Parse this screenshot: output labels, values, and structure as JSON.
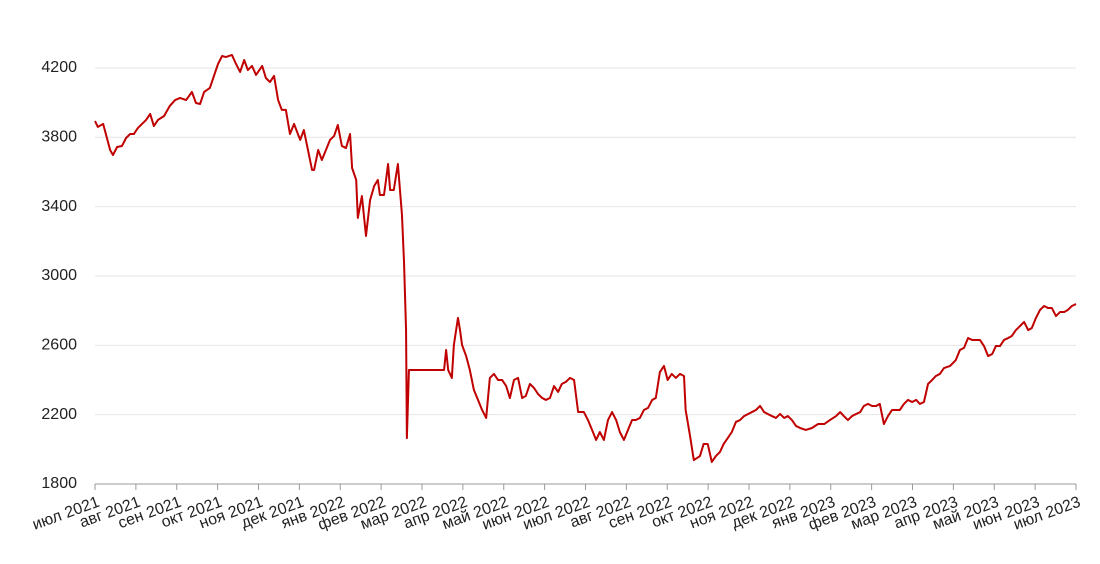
{
  "chart_data": {
    "type": "line",
    "color": "#c00000",
    "grid": true,
    "xlim": [
      0,
      24
    ],
    "ylim": [
      1800,
      4400
    ],
    "yticks": [
      1800,
      2200,
      2600,
      3000,
      3400,
      3800,
      4200
    ],
    "xticks": [
      {
        "value": 0,
        "label": "июл 2021"
      },
      {
        "value": 1,
        "label": "авг 2021"
      },
      {
        "value": 2,
        "label": "сен 2021"
      },
      {
        "value": 3,
        "label": "окт 2021"
      },
      {
        "value": 4,
        "label": "ноя 2021"
      },
      {
        "value": 5,
        "label": "дек 2021"
      },
      {
        "value": 6,
        "label": "янв 2022"
      },
      {
        "value": 7,
        "label": "фев 2022"
      },
      {
        "value": 8,
        "label": "мар 2022"
      },
      {
        "value": 9,
        "label": "апр 2022"
      },
      {
        "value": 10,
        "label": "май 2022"
      },
      {
        "value": 11,
        "label": "июн 2022"
      },
      {
        "value": 12,
        "label": "июл 2022"
      },
      {
        "value": 13,
        "label": "авг 2022"
      },
      {
        "value": 14,
        "label": "сен 2022"
      },
      {
        "value": 15,
        "label": "окт 2022"
      },
      {
        "value": 16,
        "label": "ноя 2022"
      },
      {
        "value": 17,
        "label": "дек 2022"
      },
      {
        "value": 18,
        "label": "янв 2023"
      },
      {
        "value": 19,
        "label": "фев 2023"
      },
      {
        "value": 20,
        "label": "мар 2023"
      },
      {
        "value": 21,
        "label": "апр 2023"
      },
      {
        "value": 22,
        "label": "май 2023"
      },
      {
        "value": 23,
        "label": "июн 2023"
      },
      {
        "value": 24,
        "label": "июл 2023"
      }
    ],
    "x": [
      0,
      0.07,
      0.2,
      0.37,
      0.44,
      0.54,
      0.66,
      0.76,
      0.86,
      0.95,
      1.05,
      1.15,
      1.25,
      1.35,
      1.44,
      1.54,
      1.69,
      1.83,
      1.96,
      2.08,
      2.23,
      2.37,
      2.47,
      2.57,
      2.67,
      2.81,
      2.91,
      3.01,
      3.11,
      3.2,
      3.35,
      3.45,
      3.55,
      3.65,
      3.74,
      3.84,
      3.94,
      4.09,
      4.18,
      4.28,
      4.38,
      4.48,
      4.57,
      4.67,
      4.77,
      4.87,
      5.02,
      5.11,
      5.21,
      5.31,
      5.36,
      5.46,
      5.55,
      5.65,
      5.75,
      5.85,
      5.94,
      6.04,
      6.14,
      6.24,
      6.29,
      6.39,
      6.43,
      6.53,
      6.63,
      6.73,
      6.83,
      6.92,
      6.97,
      7.07,
      7.12,
      7.17,
      7.22,
      7.31,
      7.41,
      7.51,
      7.56,
      7.61,
      7.63,
      7.68,
      8.54,
      8.59,
      8.64,
      8.73,
      8.78,
      8.88,
      8.93,
      8.98,
      9.08,
      9.17,
      9.27,
      9.37,
      9.47,
      9.57,
      9.66,
      9.76,
      9.86,
      9.96,
      10.06,
      10.15,
      10.25,
      10.35,
      10.45,
      10.54,
      10.64,
      10.74,
      10.84,
      10.94,
      11.03,
      11.13,
      11.23,
      11.33,
      11.42,
      11.52,
      11.62,
      11.72,
      11.82,
      11.96,
      12.06,
      12.16,
      12.26,
      12.35,
      12.45,
      12.55,
      12.65,
      12.75,
      12.84,
      12.94,
      13.04,
      13.14,
      13.23,
      13.33,
      13.43,
      13.53,
      13.63,
      13.72,
      13.82,
      13.92,
      14.01,
      14.11,
      14.21,
      14.31,
      14.41,
      14.45,
      14.55,
      14.65,
      14.8,
      14.89,
      14.99,
      15.09,
      15.19,
      15.29,
      15.38,
      15.48,
      15.58,
      15.68,
      15.78,
      15.88,
      15.98,
      16.07,
      16.17,
      16.27,
      16.37,
      16.46,
      16.56,
      16.66,
      16.76,
      16.86,
      16.95,
      17.05,
      17.15,
      17.25,
      17.39,
      17.54,
      17.69,
      17.84,
      17.98,
      18.13,
      18.23,
      18.32,
      18.42,
      18.52,
      18.62,
      18.72,
      18.81,
      18.91,
      19.01,
      19.11,
      19.2,
      19.3,
      19.4,
      19.5,
      19.6,
      19.69,
      19.79,
      19.89,
      19.99,
      20.09,
      20.18,
      20.28,
      20.38,
      20.48,
      20.57,
      20.67,
      20.77,
      20.92,
      21.06,
      21.16,
      21.26,
      21.36,
      21.46,
      21.55,
      21.65,
      21.75,
      21.85,
      21.95,
      22.04,
      22.14,
      22.24,
      22.34,
      22.43,
      22.53,
      22.63,
      22.73,
      22.83,
      22.92,
      23.02,
      23.12,
      23.22,
      23.32,
      23.41,
      23.51,
      23.61,
      23.71,
      23.8,
      23.9,
      24
    ],
    "values": [
      3894,
      3860,
      3877,
      3727,
      3698,
      3744,
      3750,
      3796,
      3819,
      3819,
      3854,
      3877,
      3900,
      3935,
      3865,
      3900,
      3923,
      3981,
      4015,
      4027,
      4015,
      4062,
      3998,
      3992,
      4062,
      4085,
      4154,
      4223,
      4269,
      4263,
      4275,
      4223,
      4177,
      4246,
      4188,
      4212,
      4160,
      4212,
      4142,
      4119,
      4154,
      4015,
      3958,
      3958,
      3819,
      3877,
      3785,
      3842,
      3727,
      3612,
      3612,
      3727,
      3669,
      3727,
      3785,
      3808,
      3871,
      3750,
      3738,
      3819,
      3623,
      3554,
      3335,
      3461,
      3231,
      3438,
      3519,
      3554,
      3467,
      3467,
      3554,
      3646,
      3496,
      3496,
      3646,
      3352,
      3081,
      2688,
      2065,
      2458,
      2458,
      2573,
      2458,
      2412,
      2602,
      2758,
      2688,
      2602,
      2538,
      2458,
      2342,
      2285,
      2227,
      2181,
      2412,
      2435,
      2400,
      2400,
      2365,
      2296,
      2400,
      2412,
      2296,
      2308,
      2377,
      2354,
      2319,
      2296,
      2285,
      2296,
      2365,
      2331,
      2377,
      2389,
      2412,
      2400,
      2215,
      2215,
      2169,
      2112,
      2054,
      2100,
      2054,
      2169,
      2215,
      2169,
      2100,
      2054,
      2112,
      2169,
      2169,
      2181,
      2227,
      2239,
      2285,
      2296,
      2446,
      2481,
      2400,
      2435,
      2412,
      2435,
      2423,
      2227,
      2088,
      1938,
      1961,
      2031,
      2031,
      1927,
      1961,
      1985,
      2031,
      2065,
      2100,
      2158,
      2169,
      2192,
      2204,
      2215,
      2227,
      2250,
      2215,
      2204,
      2192,
      2181,
      2204,
      2181,
      2192,
      2169,
      2135,
      2123,
      2112,
      2123,
      2146,
      2146,
      2169,
      2192,
      2215,
      2192,
      2169,
      2192,
      2204,
      2215,
      2250,
      2262,
      2250,
      2250,
      2262,
      2146,
      2192,
      2227,
      2227,
      2227,
      2262,
      2285,
      2273,
      2285,
      2262,
      2273,
      2377,
      2400,
      2423,
      2435,
      2469,
      2481,
      2515,
      2573,
      2585,
      2642,
      2631,
      2631,
      2631,
      2596,
      2538,
      2550,
      2596,
      2596,
      2631,
      2642,
      2654,
      2688,
      2711,
      2735,
      2688,
      2700,
      2758,
      2804,
      2827,
      2815,
      2815,
      2769,
      2792,
      2792,
      2804,
      2827,
      2838
    ]
  }
}
